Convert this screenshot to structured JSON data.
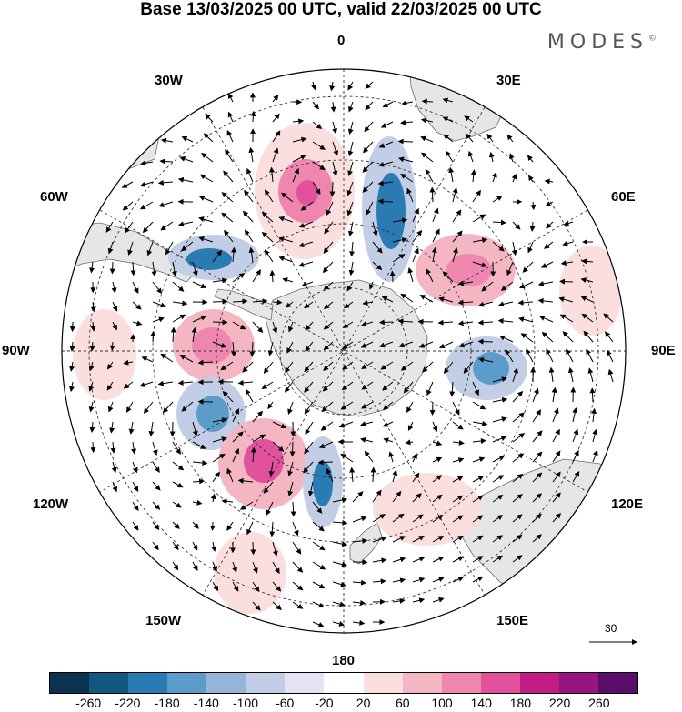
{
  "title": "Base 13/03/2025 00 UTC, valid 22/03/2025 00 UTC",
  "brand": "MODES",
  "brand_mark": "©",
  "longitude_labels": {
    "lon_0": "0",
    "lon_30e": "30E",
    "lon_60e": "60E",
    "lon_90e": "90E",
    "lon_120e": "120E",
    "lon_150e": "150E",
    "lon_180": "180",
    "lon_150w": "150W",
    "lon_120w": "120W",
    "lon_90w": "90W",
    "lon_60w": "60W",
    "lon_30w": "30W"
  },
  "reference_vector_label": "30",
  "colorbar": {
    "tick_labels": [
      "-260",
      "-220",
      "-180",
      "-140",
      "-100",
      "-60",
      "-20",
      "20",
      "60",
      "100",
      "140",
      "180",
      "220",
      "260"
    ],
    "colors": [
      "#0b3350",
      "#11577f",
      "#2a7ab3",
      "#5b9ccb",
      "#96b6d9",
      "#c2cee6",
      "#e4e4f2",
      "#ffffff",
      "#fbdede",
      "#f5b6c4",
      "#ef86ae",
      "#e2519c",
      "#c41c86",
      "#96157e",
      "#5a0d6b"
    ]
  },
  "colors": {
    "positive_anomaly": "#ef86ae",
    "negative_anomaly": "#2a7ab3",
    "land": "#e6e6e6",
    "coastline": "#555555"
  },
  "projection": "south-polar-stereographic",
  "field": "geopotential height anomaly with wind vectors"
}
